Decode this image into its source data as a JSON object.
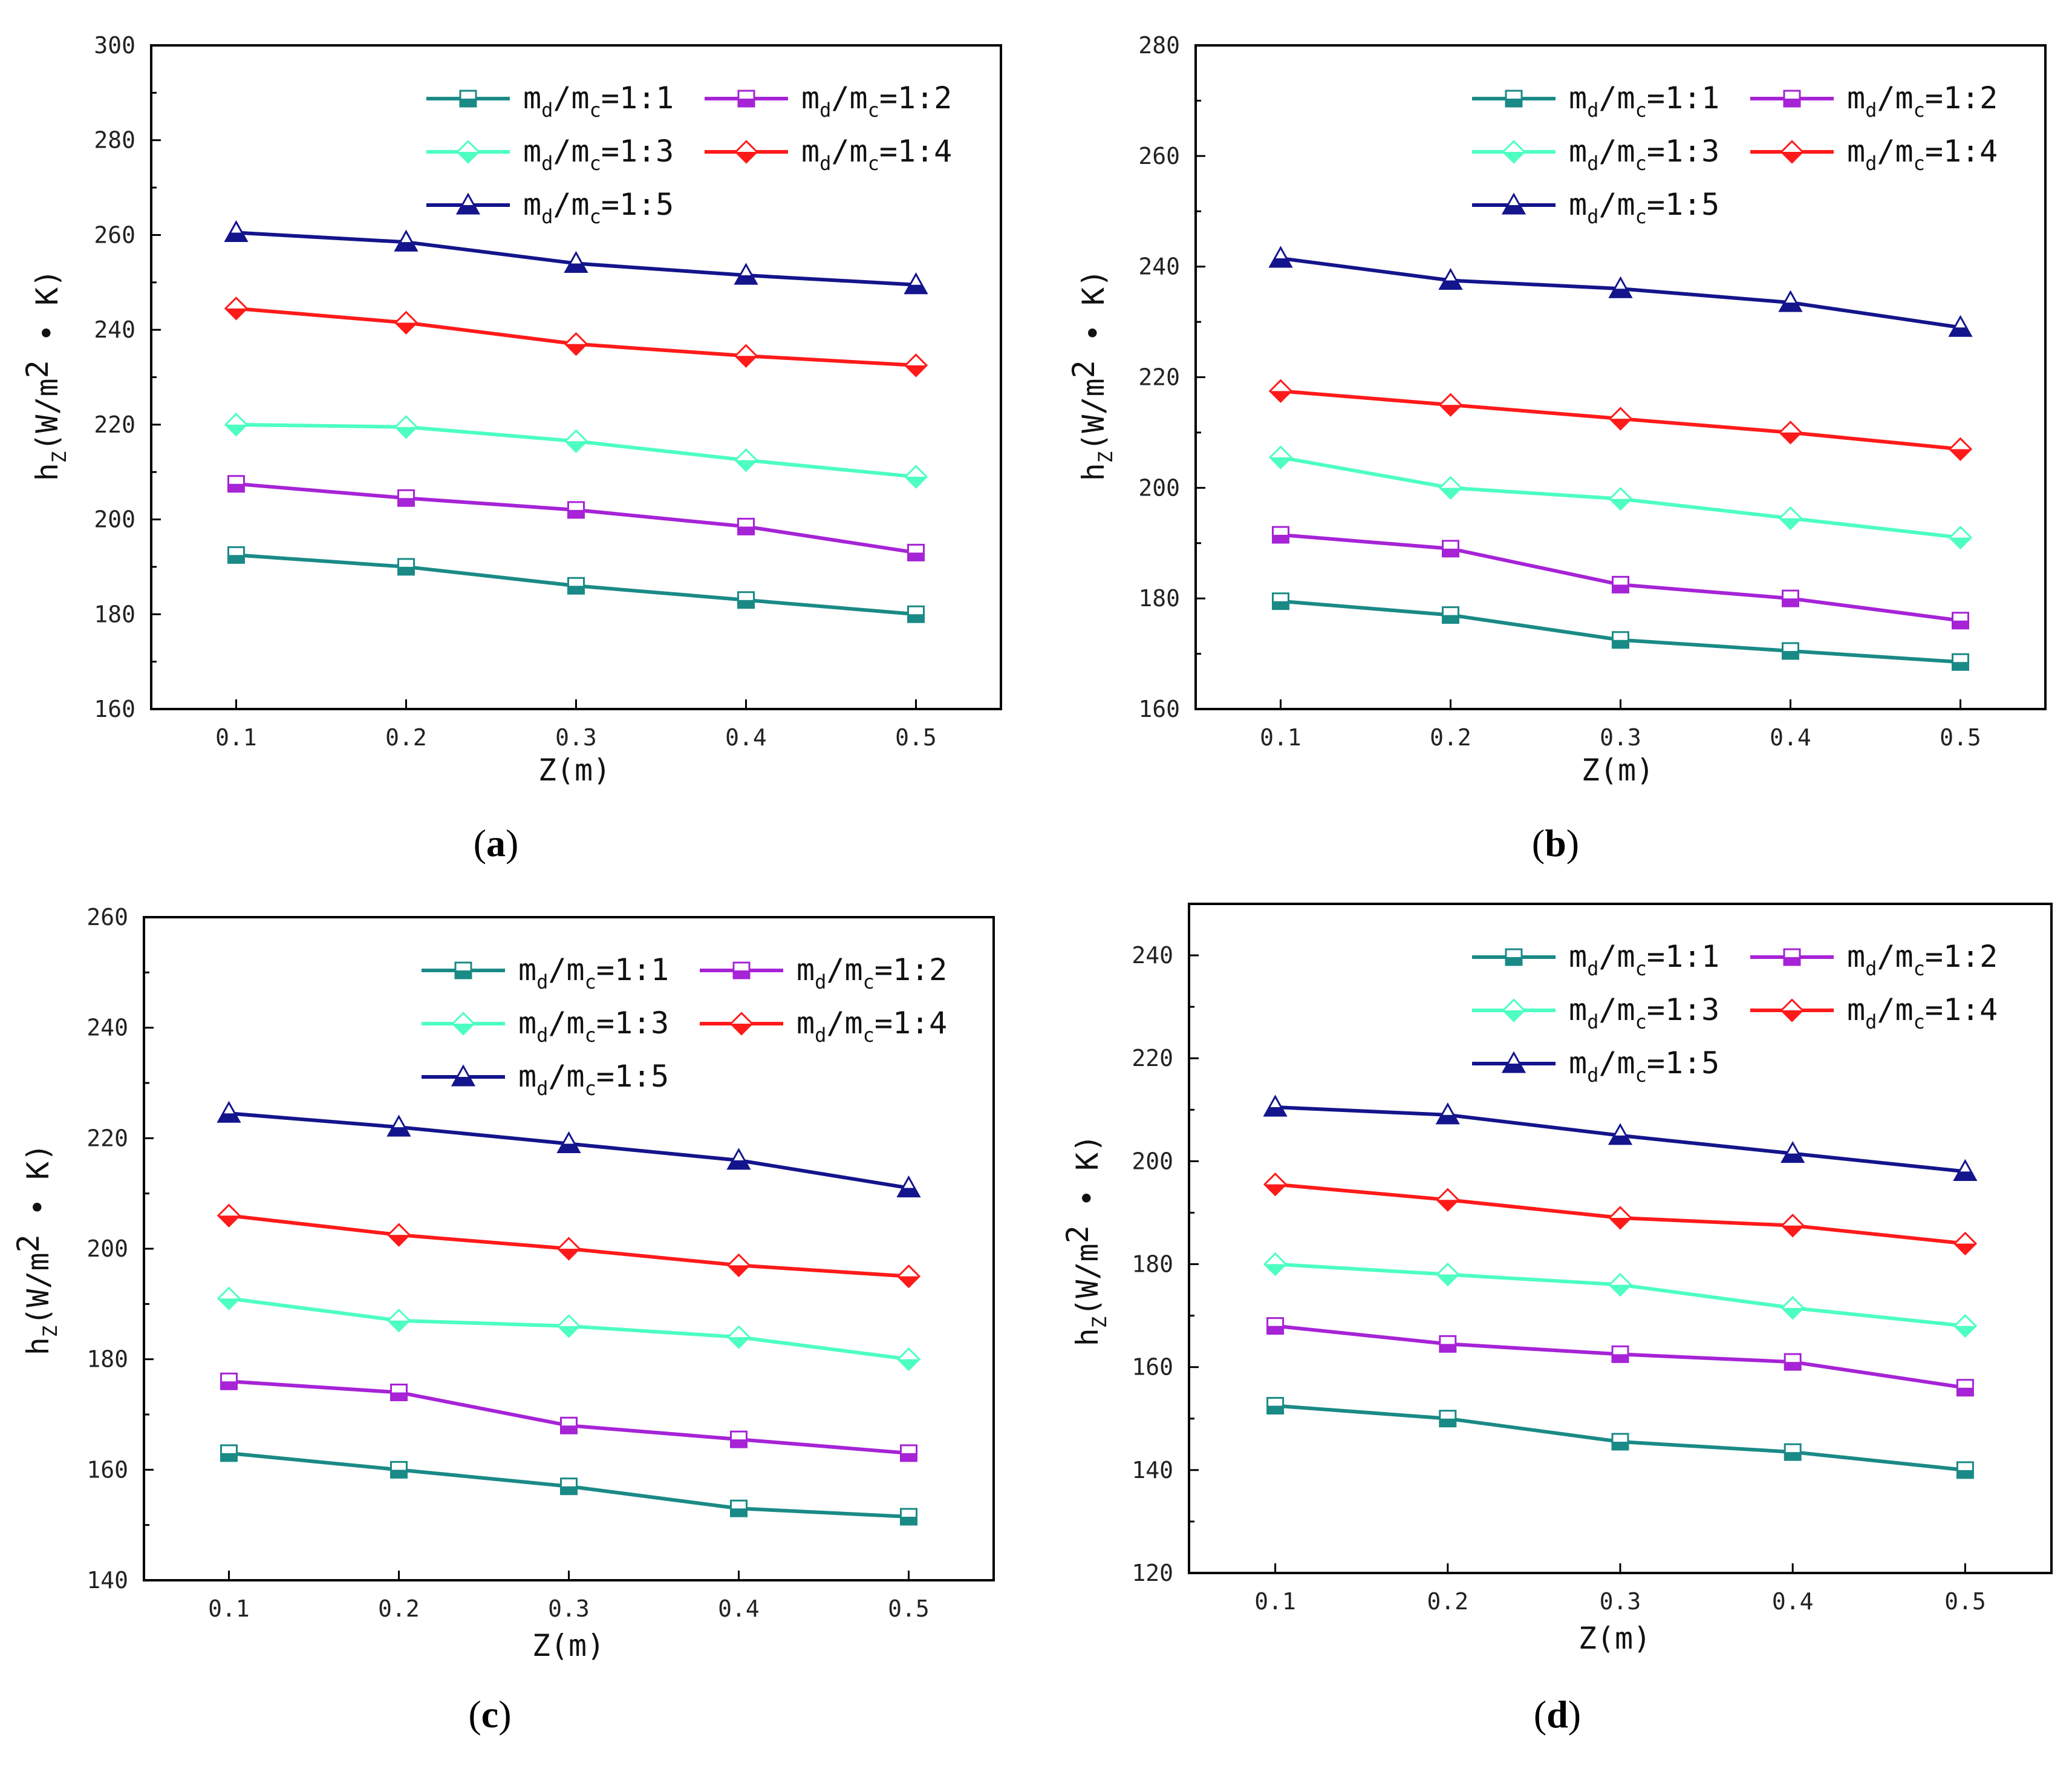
{
  "figure": {
    "panel_labels": [
      "(a)",
      "(b)",
      "(c)",
      "(d)"
    ],
    "marker_shapes": [
      "square",
      "square",
      "diamond",
      "diamond",
      "triangle"
    ],
    "marker_fill": "half",
    "series_colors": [
      "#1a8a86",
      "#a623d6",
      "#4dffc0",
      "#ff1a1a",
      "#14148c"
    ]
  },
  "chart_data": [
    {
      "type": "line",
      "panel": "(a)",
      "xlabel": "Z(m)",
      "ylabel_main": "h",
      "ylabel_sub": "Z",
      "ylabel_rest": "(W/m",
      "ylabel_sup": "2",
      "ylabel_tail": " • K)",
      "x": [
        0.1,
        0.2,
        0.3,
        0.4,
        0.5
      ],
      "xticks": [
        0.1,
        0.2,
        0.3,
        0.4,
        0.5
      ],
      "xtick_labels": [
        "0.1",
        "0.2",
        "0.3",
        "0.4",
        "0.5"
      ],
      "xlim": [
        0.05,
        0.55
      ],
      "ylim": [
        160,
        300
      ],
      "yticks": [
        160,
        180,
        200,
        220,
        240,
        260,
        280,
        300
      ],
      "ytick_labels": [
        "160",
        "180",
        "200",
        "220",
        "240",
        "260",
        "280",
        "300"
      ],
      "series": [
        {
          "name": "md/mc=1:1",
          "values": [
            192.5,
            190,
            186,
            183,
            180
          ]
        },
        {
          "name": "md/mc=1:2",
          "values": [
            207.5,
            204.5,
            202,
            198.5,
            193
          ]
        },
        {
          "name": "md/mc=1:3",
          "values": [
            220,
            219.5,
            216.5,
            212.5,
            209
          ]
        },
        {
          "name": "md/mc=1:4",
          "values": [
            244.5,
            241.5,
            237,
            234.5,
            232.5
          ]
        },
        {
          "name": "md/mc=1:5",
          "values": [
            260.5,
            258.5,
            254,
            251.5,
            249.5
          ]
        }
      ]
    },
    {
      "type": "line",
      "panel": "(b)",
      "xlabel": "Z(m)",
      "ylabel_main": "h",
      "ylabel_sub": "Z",
      "ylabel_rest": "(W/m",
      "ylabel_sup": "2",
      "ylabel_tail": " • K)",
      "x": [
        0.1,
        0.2,
        0.3,
        0.4,
        0.5
      ],
      "xticks": [
        0.1,
        0.2,
        0.3,
        0.4,
        0.5
      ],
      "xtick_labels": [
        "0.1",
        "0.2",
        "0.3",
        "0.4",
        "0.5"
      ],
      "xlim": [
        0.05,
        0.55
      ],
      "ylim": [
        160,
        280
      ],
      "yticks": [
        160,
        180,
        200,
        220,
        240,
        260,
        280
      ],
      "ytick_labels": [
        "160",
        "180",
        "200",
        "220",
        "240",
        "260",
        "280"
      ],
      "series": [
        {
          "name": "md/mc=1:1",
          "values": [
            179.5,
            177,
            172.5,
            170.5,
            168.5
          ]
        },
        {
          "name": "md/mc=1:2",
          "values": [
            191.5,
            189,
            182.5,
            180,
            176
          ]
        },
        {
          "name": "md/mc=1:3",
          "values": [
            205.5,
            200,
            198,
            194.5,
            191
          ]
        },
        {
          "name": "md/mc=1:4",
          "values": [
            217.5,
            215,
            212.5,
            210,
            207
          ]
        },
        {
          "name": "md/mc=1:5",
          "values": [
            241.5,
            237.5,
            236,
            233.5,
            229
          ]
        }
      ]
    },
    {
      "type": "line",
      "panel": "(c)",
      "xlabel": "Z(m)",
      "ylabel_main": "h",
      "ylabel_sub": "Z",
      "ylabel_rest": "(W/m",
      "ylabel_sup": "2",
      "ylabel_tail": " • K)",
      "x": [
        0.1,
        0.2,
        0.3,
        0.4,
        0.5
      ],
      "xticks": [
        0.1,
        0.2,
        0.3,
        0.4,
        0.5
      ],
      "xtick_labels": [
        "0.1",
        "0.2",
        "0.3",
        "0.4",
        "0.5"
      ],
      "xlim": [
        0.05,
        0.55
      ],
      "ylim": [
        140,
        260
      ],
      "yticks": [
        140,
        160,
        180,
        200,
        220,
        240,
        260
      ],
      "ytick_labels": [
        "140",
        "160",
        "180",
        "200",
        "220",
        "240",
        "260"
      ],
      "series": [
        {
          "name": "md/mc=1:1",
          "values": [
            163,
            160,
            157,
            153,
            151.5
          ]
        },
        {
          "name": "md/mc=1:2",
          "values": [
            176,
            174,
            168,
            165.5,
            163
          ]
        },
        {
          "name": "md/mc=1:3",
          "values": [
            191,
            187,
            186,
            184,
            180
          ]
        },
        {
          "name": "md/mc=1:4",
          "values": [
            206,
            202.5,
            200,
            197,
            195
          ]
        },
        {
          "name": "md/mc=1:5",
          "values": [
            224.5,
            222,
            219,
            216,
            211
          ]
        }
      ]
    },
    {
      "type": "line",
      "panel": "(d)",
      "xlabel": "Z(m)",
      "ylabel_main": "h",
      "ylabel_sub": "Z",
      "ylabel_rest": "(W/m",
      "ylabel_sup": "2",
      "ylabel_tail": " • K)",
      "x": [
        0.1,
        0.2,
        0.3,
        0.4,
        0.5
      ],
      "xticks": [
        0.1,
        0.2,
        0.3,
        0.4,
        0.5
      ],
      "xtick_labels": [
        "0.1",
        "0.2",
        "0.3",
        "0.4",
        "0.5"
      ],
      "xlim": [
        0.05,
        0.55
      ],
      "ylim": [
        120,
        250
      ],
      "yticks": [
        120,
        140,
        160,
        180,
        200,
        220,
        240
      ],
      "ytick_labels": [
        "120",
        "140",
        "160",
        "180",
        "200",
        "220",
        "240"
      ],
      "series": [
        {
          "name": "md/mc=1:1",
          "values": [
            152.5,
            150,
            145.5,
            143.5,
            140
          ]
        },
        {
          "name": "md/mc=1:2",
          "values": [
            168,
            164.5,
            162.5,
            161,
            156
          ]
        },
        {
          "name": "md/mc=1:3",
          "values": [
            180,
            178,
            176,
            171.5,
            168
          ]
        },
        {
          "name": "md/mc=1:4",
          "values": [
            195.5,
            192.5,
            189,
            187.5,
            184
          ]
        },
        {
          "name": "md/mc=1:5",
          "values": [
            210.5,
            209,
            205,
            201.5,
            198
          ]
        }
      ]
    }
  ],
  "legend": {
    "entries": [
      {
        "main1": "m",
        "sub1": "d",
        "slash": "/",
        "main2": "m",
        "sub2": "c",
        "ratio": "=1:1"
      },
      {
        "main1": "m",
        "sub1": "d",
        "slash": "/",
        "main2": "m",
        "sub2": "c",
        "ratio": "=1:2"
      },
      {
        "main1": "m",
        "sub1": "d",
        "slash": "/",
        "main2": "m",
        "sub2": "c",
        "ratio": "=1:3"
      },
      {
        "main1": "m",
        "sub1": "d",
        "slash": "/",
        "main2": "m",
        "sub2": "c",
        "ratio": "=1:4"
      },
      {
        "main1": "m",
        "sub1": "d",
        "slash": "/",
        "main2": "m",
        "sub2": "c",
        "ratio": "=1:5"
      }
    ]
  }
}
